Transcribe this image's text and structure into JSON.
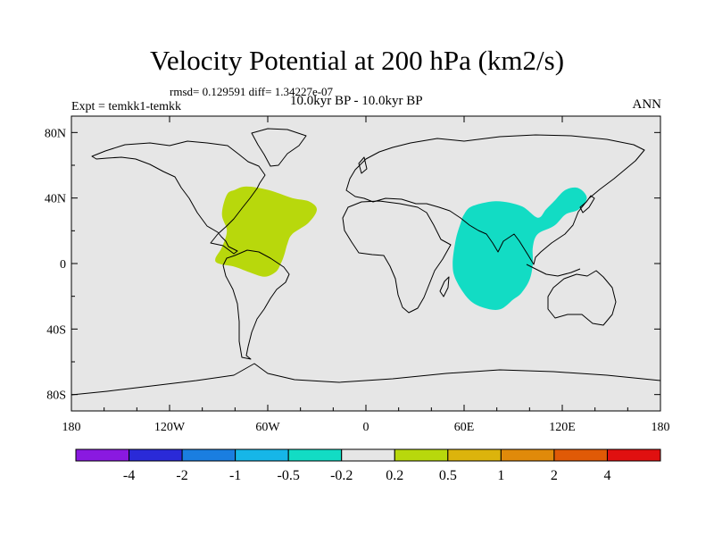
{
  "chart_data": {
    "type": "heatmap",
    "title": "Velocity Potential at 200 hPa (km2/s)",
    "stats_line": "rmsd= 0.129591 diff= 1.34227e-07",
    "left_label": "Expt = temkk1-temkk",
    "center_label": "10.0kyr BP - 10.0kyr BP",
    "right_label": "ANN",
    "x_ticks": [
      {
        "value": -180,
        "label": "180"
      },
      {
        "value": -120,
        "label": "120W"
      },
      {
        "value": -60,
        "label": "60W"
      },
      {
        "value": 0,
        "label": "0"
      },
      {
        "value": 60,
        "label": "60E"
      },
      {
        "value": 120,
        "label": "120E"
      },
      {
        "value": 180,
        "label": "180"
      }
    ],
    "y_ticks": [
      {
        "value": 80,
        "label": "80N"
      },
      {
        "value": 40,
        "label": "40N"
      },
      {
        "value": 0,
        "label": "0"
      },
      {
        "value": -40,
        "label": "40S"
      },
      {
        "value": -80,
        "label": "80S"
      }
    ],
    "xlim": [
      -180,
      180
    ],
    "ylim": [
      -90,
      90
    ],
    "background_color": "#e6e6e6",
    "colorbar": {
      "colors": [
        "#8a19e0",
        "#2a2ad8",
        "#1a7ee0",
        "#16b6e8",
        "#12dcc4",
        "#e6e6e6",
        "#b8d80c",
        "#dcb40c",
        "#e08a0a",
        "#e05a06",
        "#e01010"
      ],
      "labels": [
        "-4",
        "-2",
        "-1",
        "-0.5",
        "-0.2",
        "0.2",
        "0.5",
        "1",
        "2",
        "4"
      ]
    },
    "regions": [
      {
        "name": "atlantic-positive-anomaly",
        "level": "0.2 to 0.5",
        "color": "#b8d80c",
        "lonlat": [
          [
            -85,
            42
          ],
          [
            -80,
            45
          ],
          [
            -73,
            47
          ],
          [
            -60,
            45
          ],
          [
            -45,
            40
          ],
          [
            -35,
            38
          ],
          [
            -30,
            33
          ],
          [
            -35,
            25
          ],
          [
            -45,
            18
          ],
          [
            -48,
            12
          ],
          [
            -50,
            5
          ],
          [
            -52,
            0
          ],
          [
            -55,
            -5
          ],
          [
            -62,
            -8
          ],
          [
            -72,
            -5
          ],
          [
            -80,
            -2
          ],
          [
            -90,
            0
          ],
          [
            -92,
            3
          ],
          [
            -88,
            10
          ],
          [
            -85,
            20
          ],
          [
            -88,
            30
          ]
        ]
      },
      {
        "name": "indian-ocean-negative-anomaly",
        "level": "-0.5 to -0.2",
        "color": "#12dcc4",
        "lonlat": [
          [
            60,
            30
          ],
          [
            65,
            35
          ],
          [
            80,
            38
          ],
          [
            95,
            35
          ],
          [
            105,
            28
          ],
          [
            110,
            33
          ],
          [
            115,
            38
          ],
          [
            122,
            45
          ],
          [
            130,
            46
          ],
          [
            135,
            40
          ],
          [
            130,
            33
          ],
          [
            122,
            30
          ],
          [
            115,
            23
          ],
          [
            105,
            18
          ],
          [
            102,
            10
          ],
          [
            102,
            0
          ],
          [
            100,
            -10
          ],
          [
            95,
            -18
          ],
          [
            90,
            -22
          ],
          [
            82,
            -28
          ],
          [
            72,
            -27
          ],
          [
            63,
            -22
          ],
          [
            55,
            -10
          ],
          [
            53,
            0
          ],
          [
            55,
            15
          ],
          [
            58,
            25
          ]
        ]
      }
    ]
  }
}
